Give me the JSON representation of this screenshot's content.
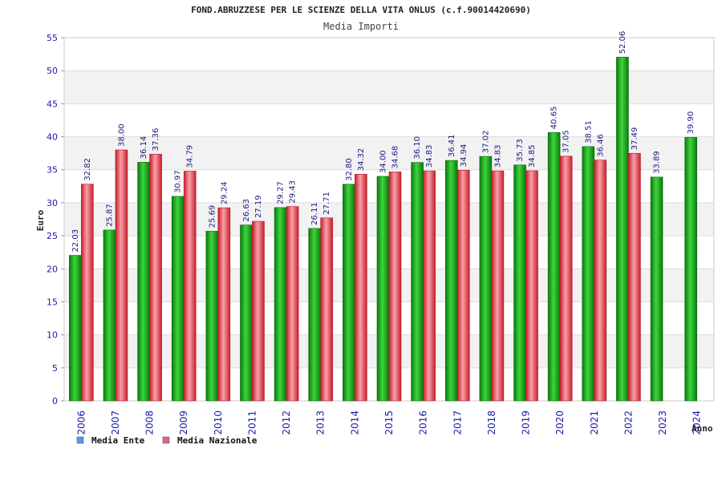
{
  "chart_data": {
    "type": "bar",
    "title": "FOND.ABRUZZESE PER LE SCIENZE DELLA VITA ONLUS (c.f.90014420690)",
    "subtitle": "Media Importi",
    "xlabel": "Anno",
    "ylabel": "Euro",
    "ylim": [
      0,
      55
    ],
    "yticks": [
      0,
      5,
      10,
      15,
      20,
      25,
      30,
      35,
      40,
      45,
      50,
      55
    ],
    "grid": true,
    "legend_position": "bottom-left",
    "categories": [
      "2006",
      "2007",
      "2008",
      "2009",
      "2010",
      "2011",
      "2012",
      "2013",
      "2014",
      "2015",
      "2016",
      "2017",
      "2018",
      "2019",
      "2020",
      "2021",
      "2022",
      "2023",
      "2024"
    ],
    "series": [
      {
        "name": "Media Ente",
        "color": "#22aa22",
        "legend_color": "#5599ee",
        "values": [
          22.03,
          25.87,
          36.14,
          30.97,
          25.69,
          26.63,
          29.27,
          26.11,
          32.8,
          34.0,
          36.1,
          36.41,
          37.02,
          35.73,
          40.65,
          38.51,
          52.06,
          33.89,
          39.9
        ],
        "labels": [
          "22.03",
          "25.87",
          "36.14",
          "30.97",
          "25.69",
          "26.63",
          "29.27",
          "26.11",
          "32.80",
          "34.00",
          "36.10",
          "36.41",
          "37.02",
          "35.73",
          "40.65",
          "38.51",
          "52.06",
          "33.89",
          "39.90"
        ]
      },
      {
        "name": "Media Nazionale",
        "color": "#ee3344",
        "legend_color": "#dd6688",
        "values": [
          32.82,
          38.0,
          37.36,
          34.79,
          29.24,
          27.19,
          29.43,
          27.71,
          34.32,
          34.68,
          34.83,
          34.94,
          34.83,
          34.85,
          37.05,
          36.46,
          37.49,
          null,
          null
        ],
        "labels": [
          "32.82",
          "38.00",
          "37.36",
          "34.79",
          "29.24",
          "27.19",
          "29.43",
          "27.71",
          "34.32",
          "34.68",
          "34.83",
          "34.94",
          "34.83",
          "34.85",
          "37.05",
          "36.46",
          "37.49",
          null,
          null
        ]
      }
    ]
  }
}
